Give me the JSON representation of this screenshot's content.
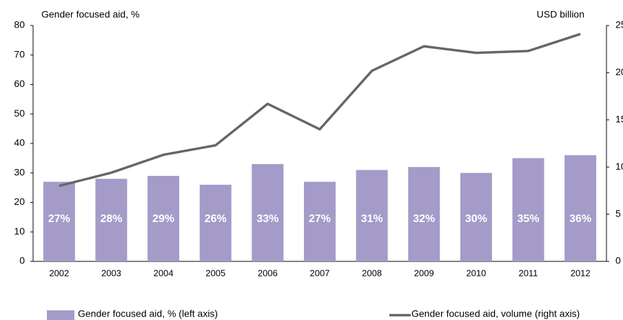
{
  "chart_data": {
    "type": "bar",
    "y_label": "Gender focused aid, %",
    "y2_label": "USD billion",
    "categories": [
      "2002",
      "2003",
      "2004",
      "2005",
      "2006",
      "2007",
      "2008",
      "2009",
      "2010",
      "2011",
      "2012"
    ],
    "series": [
      {
        "name": "Gender focused aid, % (left axis)",
        "type": "bar",
        "color": "#a49bc9",
        "values": [
          27,
          28,
          29,
          26,
          33,
          27,
          31,
          32,
          30,
          35,
          36
        ],
        "value_labels": [
          "27%",
          "28%",
          "29%",
          "26%",
          "33%",
          "27%",
          "31%",
          "32%",
          "30%",
          "35%",
          "36%"
        ]
      },
      {
        "name": "Gender focused aid, volume (right axis)",
        "type": "line",
        "axis": "y2",
        "color": "#666666",
        "values": [
          8.0,
          9.4,
          11.3,
          12.3,
          16.7,
          14.0,
          20.2,
          22.8,
          22.1,
          22.3,
          24.1
        ]
      }
    ],
    "ylim": [
      0,
      80
    ],
    "yticks": [
      0,
      10,
      20,
      30,
      40,
      50,
      60,
      70,
      80
    ],
    "y2lim": [
      0,
      25
    ],
    "y2ticks": [
      0,
      5,
      10,
      15,
      20,
      25
    ]
  }
}
